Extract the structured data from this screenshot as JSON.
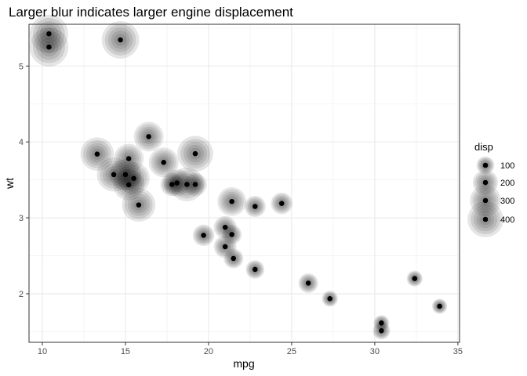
{
  "chart_data": {
    "type": "scatter",
    "title": "Larger blur indicates larger engine displacement",
    "xlabel": "mpg",
    "ylabel": "wt",
    "xlim": [
      9.2,
      35.1
    ],
    "ylim": [
      1.36,
      5.55
    ],
    "x_ticks": [
      "10",
      "15",
      "20",
      "25",
      "30",
      "35"
    ],
    "y_ticks": [
      "2",
      "3",
      "4",
      "5"
    ],
    "grid": true,
    "theme": "bw",
    "legend": {
      "title": "disp",
      "placement": "right",
      "breaks": [
        {
          "label": "100",
          "value": 100
        },
        {
          "label": "200",
          "value": 200
        },
        {
          "label": "300",
          "value": 300
        },
        {
          "label": "400",
          "value": 400
        }
      ]
    },
    "points": [
      {
        "mpg": 21.0,
        "wt": 2.62,
        "disp": 160
      },
      {
        "mpg": 21.0,
        "wt": 2.875,
        "disp": 160
      },
      {
        "mpg": 22.8,
        "wt": 2.32,
        "disp": 108
      },
      {
        "mpg": 21.4,
        "wt": 3.215,
        "disp": 258
      },
      {
        "mpg": 18.7,
        "wt": 3.44,
        "disp": 360
      },
      {
        "mpg": 18.1,
        "wt": 3.46,
        "disp": 225
      },
      {
        "mpg": 14.3,
        "wt": 3.57,
        "disp": 360
      },
      {
        "mpg": 24.4,
        "wt": 3.19,
        "disp": 146.7
      },
      {
        "mpg": 22.8,
        "wt": 3.15,
        "disp": 140.8
      },
      {
        "mpg": 19.2,
        "wt": 3.44,
        "disp": 167.6
      },
      {
        "mpg": 17.8,
        "wt": 3.44,
        "disp": 167.6
      },
      {
        "mpg": 16.4,
        "wt": 4.07,
        "disp": 275.8
      },
      {
        "mpg": 17.3,
        "wt": 3.73,
        "disp": 275.8
      },
      {
        "mpg": 15.2,
        "wt": 3.78,
        "disp": 275.8
      },
      {
        "mpg": 10.4,
        "wt": 5.25,
        "disp": 472
      },
      {
        "mpg": 10.4,
        "wt": 5.424,
        "disp": 460
      },
      {
        "mpg": 14.7,
        "wt": 5.345,
        "disp": 440
      },
      {
        "mpg": 32.4,
        "wt": 2.2,
        "disp": 78.7
      },
      {
        "mpg": 30.4,
        "wt": 1.615,
        "disp": 75.7
      },
      {
        "mpg": 33.9,
        "wt": 1.835,
        "disp": 71.1
      },
      {
        "mpg": 21.5,
        "wt": 2.465,
        "disp": 120.1
      },
      {
        "mpg": 15.5,
        "wt": 3.52,
        "disp": 318
      },
      {
        "mpg": 15.2,
        "wt": 3.435,
        "disp": 304
      },
      {
        "mpg": 13.3,
        "wt": 3.84,
        "disp": 350
      },
      {
        "mpg": 19.2,
        "wt": 3.845,
        "disp": 400
      },
      {
        "mpg": 27.3,
        "wt": 1.935,
        "disp": 79
      },
      {
        "mpg": 26.0,
        "wt": 2.14,
        "disp": 120.3
      },
      {
        "mpg": 30.4,
        "wt": 1.513,
        "disp": 95.1
      },
      {
        "mpg": 15.8,
        "wt": 3.17,
        "disp": 351
      },
      {
        "mpg": 19.7,
        "wt": 2.77,
        "disp": 145
      },
      {
        "mpg": 15.0,
        "wt": 3.57,
        "disp": 301
      },
      {
        "mpg": 21.4,
        "wt": 2.78,
        "disp": 121
      }
    ]
  }
}
